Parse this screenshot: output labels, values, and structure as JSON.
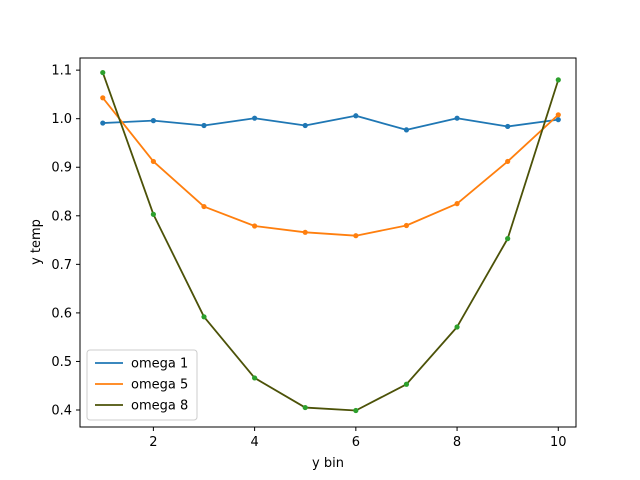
{
  "chart_data": {
    "type": "line",
    "xlabel": "y bin",
    "ylabel": "y temp",
    "xlim": [
      0.55,
      10.35
    ],
    "ylim": [
      0.365,
      1.125
    ],
    "x_ticks": [
      2,
      4,
      6,
      8,
      10
    ],
    "x_tick_labels": [
      "2",
      "4",
      "6",
      "8",
      "10"
    ],
    "y_ticks": [
      0.4,
      0.5,
      0.6,
      0.7,
      0.8,
      0.9,
      1.0,
      1.1
    ],
    "y_tick_labels": [
      "0.4",
      "0.5",
      "0.6",
      "0.7",
      "0.8",
      "0.9",
      "1.0",
      "1.1"
    ],
    "grid": false,
    "legend_position": "lower-left",
    "x": [
      1,
      2,
      3,
      4,
      5,
      6,
      7,
      8,
      9,
      10
    ],
    "series": [
      {
        "name": "omega 1",
        "color": "#1f77b4",
        "marker_color": "#1f77b4",
        "values": [
          0.991,
          0.996,
          0.986,
          1.001,
          0.986,
          1.006,
          0.977,
          1.001,
          0.984,
          0.998
        ]
      },
      {
        "name": "omega 5",
        "color": "#ff7f0e",
        "marker_color": "#ff7f0e",
        "values": [
          1.043,
          0.912,
          0.819,
          0.779,
          0.766,
          0.759,
          0.78,
          0.825,
          0.912,
          1.008
        ]
      },
      {
        "name": "omega 8",
        "color": "#4c5208",
        "marker_color": "#2ca02c",
        "values": [
          1.095,
          0.803,
          0.592,
          0.466,
          0.405,
          0.399,
          0.453,
          0.571,
          0.753,
          1.08
        ]
      }
    ]
  }
}
